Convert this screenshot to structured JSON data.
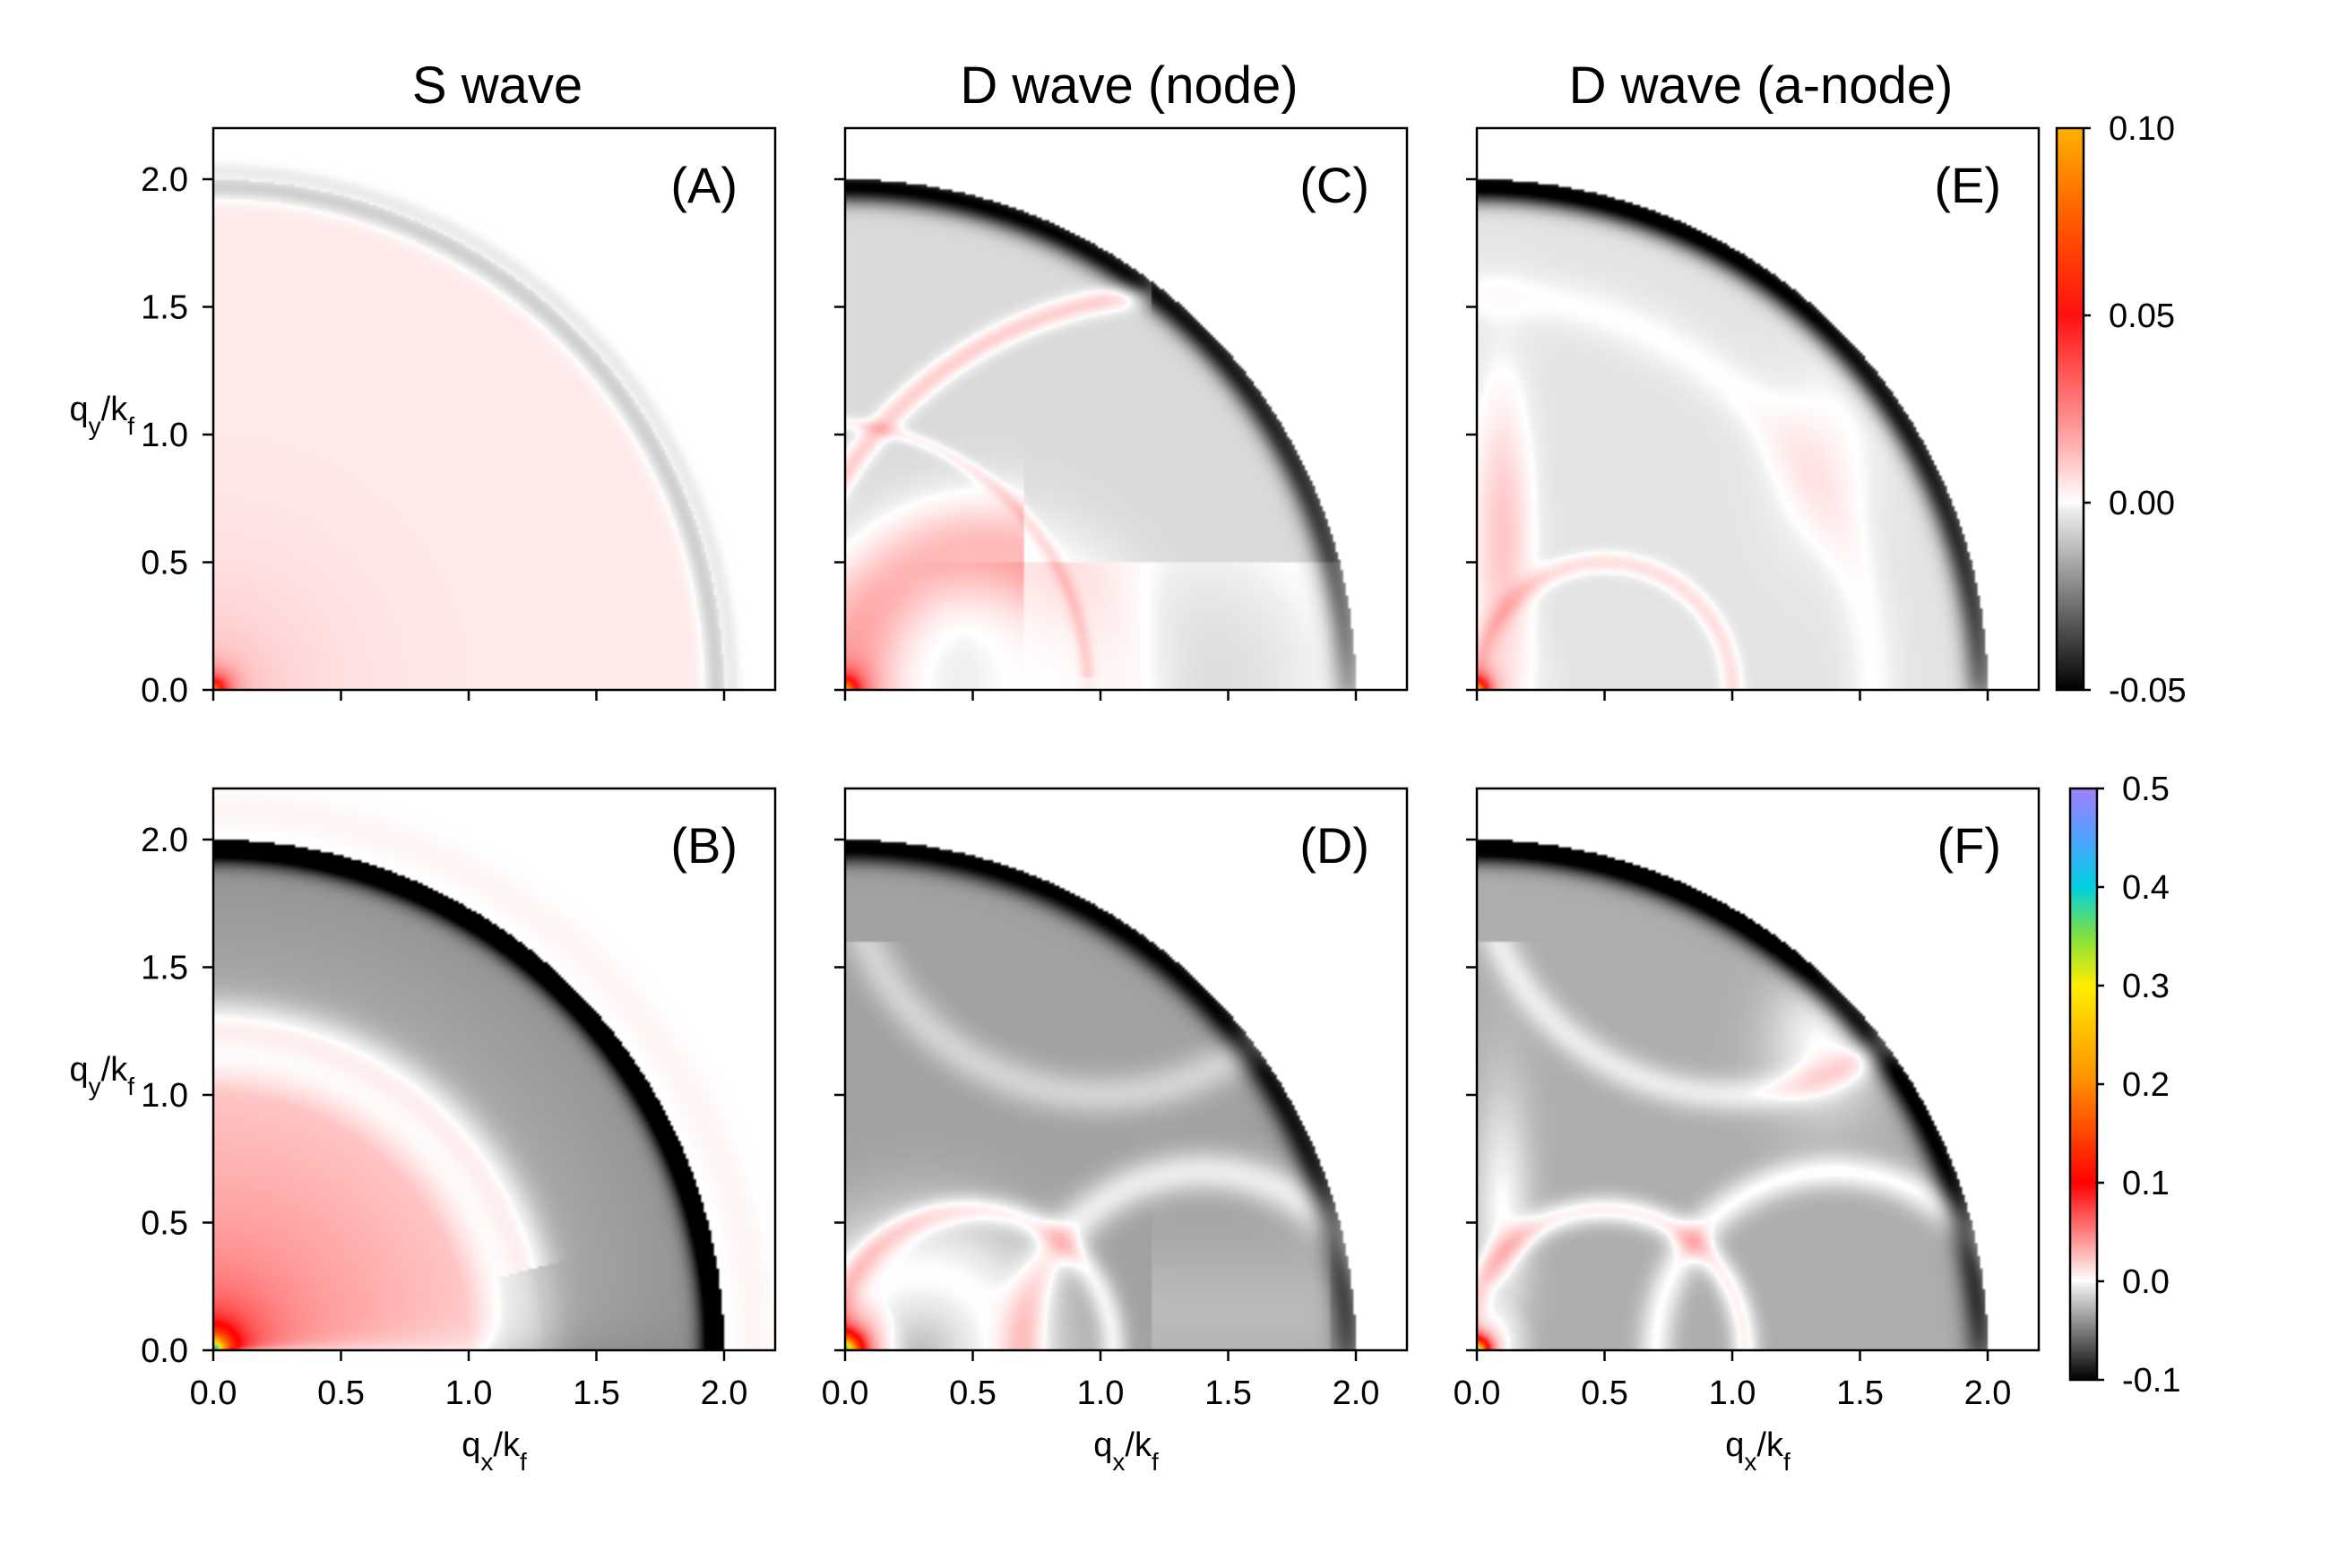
{
  "figure": {
    "column_titles": [
      "S wave",
      "D wave (node)",
      "D wave (a-node)"
    ]
  },
  "chart_data": [
    {
      "type": "heatmap",
      "panel": "(A)",
      "row": 0,
      "col": 0,
      "title": "S wave",
      "xlabel": "",
      "ylabel": "q_y/k_f",
      "xlim": [
        0.0,
        2.2
      ],
      "ylim": [
        0.0,
        2.2
      ],
      "xticks": [],
      "yticks": [
        "0.0",
        "0.5",
        "1.0",
        "1.5",
        "2.0"
      ],
      "colorscale": "top",
      "pattern": "s-wave-top"
    },
    {
      "type": "heatmap",
      "panel": "(B)",
      "row": 1,
      "col": 0,
      "title": "",
      "xlabel": "q_x/k_f",
      "ylabel": "q_y/k_f",
      "xlim": [
        0.0,
        2.2
      ],
      "ylim": [
        0.0,
        2.2
      ],
      "xticks": [
        "0.0",
        "0.5",
        "1.0",
        "1.5",
        "2.0"
      ],
      "yticks": [
        "0.0",
        "0.5",
        "1.0",
        "1.5",
        "2.0"
      ],
      "colorscale": "bottom",
      "pattern": "s-wave-bottom"
    },
    {
      "type": "heatmap",
      "panel": "(C)",
      "row": 0,
      "col": 1,
      "title": "D wave (node)",
      "xlabel": "",
      "ylabel": "",
      "xlim": [
        0.0,
        2.2
      ],
      "ylim": [
        0.0,
        2.2
      ],
      "xticks": [],
      "yticks": [],
      "colorscale": "top",
      "pattern": "d-node-top"
    },
    {
      "type": "heatmap",
      "panel": "(D)",
      "row": 1,
      "col": 1,
      "title": "",
      "xlabel": "q_x/k_f",
      "ylabel": "",
      "xlim": [
        0.0,
        2.2
      ],
      "ylim": [
        0.0,
        2.2
      ],
      "xticks": [
        "0.0",
        "0.5",
        "1.0",
        "1.5",
        "2.0"
      ],
      "yticks": [],
      "colorscale": "bottom",
      "pattern": "d-node-bottom"
    },
    {
      "type": "heatmap",
      "panel": "(E)",
      "row": 0,
      "col": 2,
      "title": "D wave (a-node)",
      "xlabel": "",
      "ylabel": "",
      "xlim": [
        0.0,
        2.2
      ],
      "ylim": [
        0.0,
        2.2
      ],
      "xticks": [],
      "yticks": [],
      "colorscale": "top",
      "pattern": "d-anode-top"
    },
    {
      "type": "heatmap",
      "panel": "(F)",
      "row": 1,
      "col": 2,
      "title": "",
      "xlabel": "q_x/k_f",
      "ylabel": "",
      "xlim": [
        0.0,
        2.2
      ],
      "ylim": [
        0.0,
        2.2
      ],
      "xticks": [
        "0.0",
        "0.5",
        "1.0",
        "1.5",
        "2.0"
      ],
      "yticks": [],
      "colorscale": "bottom",
      "pattern": "d-anode-bottom"
    }
  ],
  "colorbars": {
    "top": {
      "range": [
        -0.05,
        0.1
      ],
      "ticks": [
        {
          "v": 0.1,
          "label": "0.10"
        },
        {
          "v": 0.05,
          "label": "0.05"
        },
        {
          "v": 0.0,
          "label": "0.00"
        },
        {
          "v": -0.05,
          "label": "-0.05"
        }
      ],
      "stops": [
        {
          "v": -0.05,
          "c": "#000000"
        },
        {
          "v": -0.0015,
          "c": "#f0f0f0"
        },
        {
          "v": 0.0,
          "c": "#ffffff"
        },
        {
          "v": 0.02,
          "c": "#ff9999"
        },
        {
          "v": 0.05,
          "c": "#ff1010"
        },
        {
          "v": 0.075,
          "c": "#ff5a00"
        },
        {
          "v": 0.1,
          "c": "#ffb000"
        }
      ]
    },
    "bottom": {
      "range": [
        -0.1,
        0.5
      ],
      "ticks": [
        {
          "v": 0.5,
          "label": "0.5"
        },
        {
          "v": 0.4,
          "label": "0.4"
        },
        {
          "v": 0.3,
          "label": "0.3"
        },
        {
          "v": 0.2,
          "label": "0.2"
        },
        {
          "v": 0.1,
          "label": "0.1"
        },
        {
          "v": 0.0,
          "label": "0.0"
        },
        {
          "v": -0.1,
          "label": "-0.1"
        }
      ],
      "stops": [
        {
          "v": -0.1,
          "c": "#000000"
        },
        {
          "v": -0.003,
          "c": "#f0f0f0"
        },
        {
          "v": 0.0,
          "c": "#ffffff"
        },
        {
          "v": 0.05,
          "c": "#ff8080"
        },
        {
          "v": 0.1,
          "c": "#ff0000"
        },
        {
          "v": 0.2,
          "c": "#ff8c00"
        },
        {
          "v": 0.3,
          "c": "#ffee00"
        },
        {
          "v": 0.35,
          "c": "#80e040"
        },
        {
          "v": 0.4,
          "c": "#00d0e0"
        },
        {
          "v": 0.45,
          "c": "#50a0ff"
        },
        {
          "v": 0.5,
          "c": "#a080ff"
        }
      ]
    }
  }
}
